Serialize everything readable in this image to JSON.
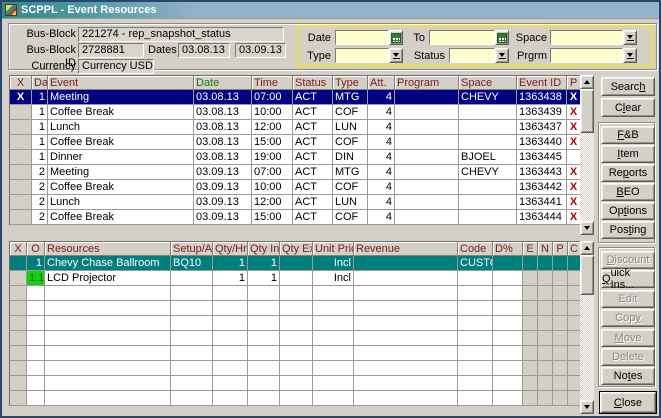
{
  "window": {
    "title": "SCPPL - Event Resources"
  },
  "header": {
    "bus_block_label": "Bus-Block",
    "bus_block_value": "221274 - rep_snapshot_status",
    "bus_block_id_label": "Bus-Block ID",
    "bus_block_id_value": "2728881",
    "dates_label": "Dates",
    "date_from": "03.08.13",
    "date_to": "03.09.13",
    "currency_label": "Currency",
    "currency_value": "Currency USD"
  },
  "filters": {
    "date_label": "Date",
    "to_label": "To",
    "space_label": "Space",
    "type_label": "Type",
    "status_label": "Status",
    "prgrm_label": "Prgrm",
    "date_value": "",
    "to_value": "",
    "space_value": "",
    "type_value": "",
    "status_value": "",
    "prgrm_value": ""
  },
  "events_table": {
    "columns": [
      "X",
      "Day",
      "Event",
      "Date",
      "Time",
      "Status",
      "Type",
      "Att.",
      "Program",
      "Space",
      "Event ID",
      "P"
    ],
    "rows": [
      {
        "x": "X",
        "day": "1",
        "event": "Meeting",
        "date": "03.08.13",
        "time": "07:00",
        "status": "ACT",
        "type": "MTG",
        "att": "4",
        "program": "",
        "space": "CHEVY",
        "event_id": "1363438",
        "p": "X",
        "selected": true
      },
      {
        "x": "",
        "day": "1",
        "event": "Coffee Break",
        "date": "03.08.13",
        "time": "10:00",
        "status": "ACT",
        "type": "COF",
        "att": "4",
        "program": "",
        "space": "",
        "event_id": "1363439",
        "p": "X",
        "selected": false
      },
      {
        "x": "",
        "day": "1",
        "event": "Lunch",
        "date": "03.08.13",
        "time": "12:00",
        "status": "ACT",
        "type": "LUN",
        "att": "4",
        "program": "",
        "space": "",
        "event_id": "1363437",
        "p": "X",
        "selected": false
      },
      {
        "x": "",
        "day": "1",
        "event": "Coffee Break",
        "date": "03.08.13",
        "time": "15:00",
        "status": "ACT",
        "type": "COF",
        "att": "4",
        "program": "",
        "space": "",
        "event_id": "1363440",
        "p": "X",
        "selected": false
      },
      {
        "x": "",
        "day": "1",
        "event": "Dinner",
        "date": "03.08.13",
        "time": "19:00",
        "status": "ACT",
        "type": "DIN",
        "att": "4",
        "program": "",
        "space": "BJOEL",
        "event_id": "1363445",
        "p": "",
        "selected": false
      },
      {
        "x": "",
        "day": "2",
        "event": "Meeting",
        "date": "03.09.13",
        "time": "07:00",
        "status": "ACT",
        "type": "MTG",
        "att": "4",
        "program": "",
        "space": "CHEVY",
        "event_id": "1363443",
        "p": "X",
        "selected": false
      },
      {
        "x": "",
        "day": "2",
        "event": "Coffee Break",
        "date": "03.09.13",
        "time": "10:00",
        "status": "ACT",
        "type": "COF",
        "att": "4",
        "program": "",
        "space": "",
        "event_id": "1363442",
        "p": "X",
        "selected": false
      },
      {
        "x": "",
        "day": "2",
        "event": "Lunch",
        "date": "03.09.13",
        "time": "12:00",
        "status": "ACT",
        "type": "LUN",
        "att": "4",
        "program": "",
        "space": "",
        "event_id": "1363441",
        "p": "X",
        "selected": false
      },
      {
        "x": "",
        "day": "2",
        "event": "Coffee Break",
        "date": "03.09.13",
        "time": "15:00",
        "status": "ACT",
        "type": "COF",
        "att": "4",
        "program": "",
        "space": "",
        "event_id": "1363444",
        "p": "X",
        "selected": false
      }
    ]
  },
  "resources_table": {
    "columns": [
      "X",
      "O",
      "Resources",
      "Setup/Attr.",
      "Qty/Hrs",
      "Qty Inc",
      "Qty Exc",
      "Unit Price",
      "Revenue",
      "Code",
      "D%",
      "E",
      "N",
      "P",
      "C"
    ],
    "rows": [
      {
        "x_color": "red",
        "o": "1",
        "o_color": "yellow",
        "resource": "Chevy Chase Ballroom",
        "setup": "BQ10",
        "qty_hrs": "1",
        "qty_inc": "1",
        "qty_exc": "",
        "unit_price": "Incl",
        "revenue": "",
        "code": "CUSTOI",
        "d_pct": "",
        "e": "",
        "n": "",
        "p": "",
        "c": "",
        "selected": true
      },
      {
        "x_color": "",
        "o": "1.1",
        "o_color": "green",
        "resource": "LCD Projector",
        "setup": "",
        "qty_hrs": "1",
        "qty_inc": "1",
        "qty_exc": "",
        "unit_price": "Incl",
        "revenue": "",
        "code": "",
        "d_pct": "",
        "e": "",
        "n": "",
        "p": "",
        "c": "",
        "selected": false
      }
    ],
    "empty_rows": 8
  },
  "side_buttons": {
    "top": [
      {
        "label": "Search",
        "u": 5,
        "disabled": false
      },
      {
        "label": "Clear",
        "u": 1,
        "disabled": false
      }
    ],
    "group1": [
      {
        "label": "F&B",
        "u": 0,
        "disabled": false
      },
      {
        "label": "Item",
        "u": 0,
        "disabled": false
      },
      {
        "label": "Reports",
        "u": 2,
        "disabled": false
      },
      {
        "label": "BEO",
        "u": 0,
        "disabled": false
      },
      {
        "label": "Options",
        "u": 2,
        "disabled": false
      },
      {
        "label": "Posting",
        "u": 3,
        "disabled": false
      }
    ],
    "group2": [
      {
        "label": "Discount",
        "u": 0,
        "disabled": true
      },
      {
        "label": "Quick Ins...",
        "u": 0,
        "disabled": false
      },
      {
        "label": "Edit",
        "u": -1,
        "disabled": true
      },
      {
        "label": "Copy",
        "u": 3,
        "disabled": true
      },
      {
        "label": "Move",
        "u": 0,
        "disabled": true
      },
      {
        "label": "Delete",
        "u": -1,
        "disabled": true
      },
      {
        "label": "Notes",
        "u": 2,
        "disabled": false
      }
    ],
    "close": {
      "label": "Close",
      "u": 0,
      "disabled": false
    }
  },
  "icons": {
    "app_icon": "app-icon",
    "calendar": "calendar-icon",
    "dropdown": "dropdown-arrow-icon",
    "scroll_up": "scroll-up-arrow-icon",
    "scroll_down": "scroll-down-arrow-icon"
  },
  "colors": {
    "dialog_bg": "#d4d0c8",
    "titlebar_left": "#2f8a8a",
    "titlebar_right": "#95b3cd",
    "selection_navy": "#000080",
    "selection_teal": "#007d7d",
    "header_text": "#7b1d1d",
    "date_header_text": "#157a15",
    "x_mark_red": "#c00000",
    "input_yellow": "#ffffcc",
    "filter_border_yellow": "#e9e53c",
    "cell_red": "#e80000",
    "cell_yellow": "#ffff00",
    "cell_green": "#00dd00"
  }
}
